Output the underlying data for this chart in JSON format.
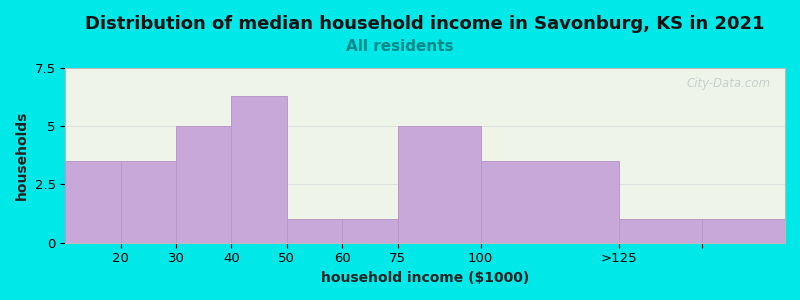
{
  "title": "Distribution of median household income in Savonburg, KS in 2021",
  "subtitle": "All residents",
  "xlabel": "household income ($1000)",
  "ylabel": "households",
  "bar_lefts": [
    0,
    10,
    20,
    30,
    40,
    50,
    60,
    75,
    100,
    115
  ],
  "bar_widths": [
    10,
    10,
    10,
    10,
    10,
    10,
    15,
    25,
    15,
    15
  ],
  "bar_labels": [
    "",
    "20",
    "30",
    "40",
    "50",
    "60",
    "75",
    "100",
    ">125",
    ""
  ],
  "values": [
    3.5,
    3.5,
    5.0,
    6.3,
    1.0,
    1.0,
    5.0,
    3.5,
    1.0,
    1.0
  ],
  "tick_positions": [
    10,
    20,
    30,
    40,
    50,
    60,
    75,
    100,
    115
  ],
  "tick_labels": [
    "20",
    "30",
    "40",
    "50",
    "60",
    "75",
    "100",
    ">125",
    ""
  ],
  "bar_color": "#c8a8d8",
  "bar_edge_color": "#b898c8",
  "ylim": [
    0,
    7.5
  ],
  "yticks": [
    0,
    2.5,
    5.0,
    7.5
  ],
  "xlim": [
    0,
    130
  ],
  "background_color": "#00e8e8",
  "plot_bg_color": "#eef5e8",
  "title_fontsize": 13,
  "subtitle_fontsize": 11,
  "axis_label_fontsize": 10,
  "watermark_text": "City-Data.com"
}
